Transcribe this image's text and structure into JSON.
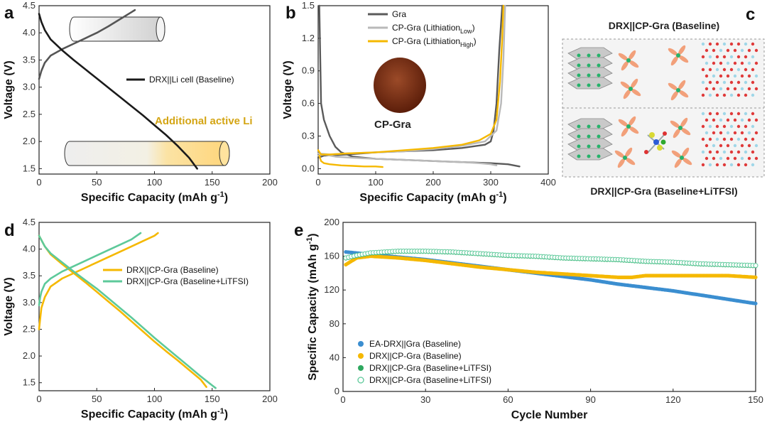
{
  "colors": {
    "black": "#1a1a1a",
    "gray_dark": "#5a5a5a",
    "gray_light": "#b9b9b9",
    "yellow": "#f5b800",
    "green": "#5dc99a",
    "blue": "#3b8ed0",
    "green_dark": "#2ea85f",
    "annotation_gold": "#d4a514",
    "disk": "#7a2e12"
  },
  "chart_data": [
    {
      "panel": "a",
      "type": "line",
      "xlabel": "Specific Capacity (mAh g-1)",
      "ylabel": "Voltage (V)",
      "xlim": [
        0,
        200
      ],
      "ylim": [
        1.4,
        4.5
      ],
      "xticks": [
        "0",
        "50",
        "100",
        "150",
        "200"
      ],
      "yticks": [
        "1.5",
        "2.0",
        "2.5",
        "3.0",
        "3.5",
        "4.0",
        "4.5"
      ],
      "legend": [
        "DRX||Li cell (Baseline)"
      ],
      "annotation": "Additional active Li",
      "series": [
        {
          "name": "charge",
          "x": [
            0,
            2,
            5,
            10,
            20,
            30,
            40,
            50,
            60,
            70,
            80,
            83
          ],
          "y": [
            3.15,
            3.3,
            3.45,
            3.58,
            3.7,
            3.8,
            3.9,
            4.0,
            4.12,
            4.25,
            4.38,
            4.42
          ]
        },
        {
          "name": "discharge",
          "x": [
            0,
            2,
            5,
            10,
            20,
            30,
            40,
            50,
            60,
            70,
            80,
            90,
            100,
            110,
            120,
            130,
            137
          ],
          "y": [
            4.35,
            4.2,
            4.05,
            3.88,
            3.68,
            3.5,
            3.33,
            3.16,
            2.99,
            2.82,
            2.65,
            2.48,
            2.3,
            2.12,
            1.92,
            1.7,
            1.5
          ]
        }
      ]
    },
    {
      "panel": "b",
      "type": "line",
      "xlabel": "Specific Capacity (mAh g-1)",
      "ylabel": "Voltage (V)",
      "xlim": [
        0,
        400
      ],
      "ylim": [
        -0.05,
        1.5
      ],
      "xticks": [
        "0",
        "100",
        "200",
        "300",
        "400"
      ],
      "yticks": [
        "0.0",
        "0.3",
        "0.6",
        "0.9",
        "1.2",
        "1.5"
      ],
      "legend": [
        "Gra",
        "CP-Gra (Lithiation",
        "CP-Gra (Lithiation"
      ],
      "legend_subscripts": [
        "Low",
        "High"
      ],
      "inset_label": "CP-Gra",
      "series": [
        {
          "name": "Gra discharge",
          "x": [
            2,
            5,
            10,
            20,
            30,
            40,
            60,
            100,
            150,
            200,
            250,
            300,
            330,
            350
          ],
          "y": [
            1.5,
            0.6,
            0.45,
            0.3,
            0.2,
            0.15,
            0.11,
            0.09,
            0.08,
            0.07,
            0.06,
            0.05,
            0.04,
            0.02
          ]
        },
        {
          "name": "Gra charge",
          "x": [
            0,
            10,
            50,
            100,
            150,
            200,
            250,
            290,
            300,
            305,
            310,
            315,
            320
          ],
          "y": [
            0.1,
            0.12,
            0.13,
            0.15,
            0.16,
            0.17,
            0.19,
            0.22,
            0.25,
            0.35,
            0.6,
            1.1,
            1.5
          ]
        },
        {
          "name": "CP-Gra Low discharge",
          "x": [
            0,
            10,
            30,
            60,
            100,
            150,
            200,
            250,
            280,
            300,
            310
          ],
          "y": [
            0.12,
            0.13,
            0.11,
            0.1,
            0.09,
            0.08,
            0.07,
            0.06,
            0.05,
            0.04,
            0.03
          ]
        },
        {
          "name": "CP-Gra Low charge",
          "x": [
            0,
            20,
            50,
            100,
            150,
            200,
            250,
            290,
            310,
            318,
            322,
            325
          ],
          "y": [
            0.14,
            0.13,
            0.14,
            0.15,
            0.16,
            0.18,
            0.21,
            0.25,
            0.35,
            0.6,
            1.0,
            1.5
          ]
        },
        {
          "name": "CP-Gra High discharge",
          "x": [
            2,
            5,
            10,
            20,
            40,
            60,
            80,
            100,
            112
          ],
          "y": [
            0.12,
            0.07,
            0.05,
            0.04,
            0.03,
            0.025,
            0.02,
            0.02,
            0.015
          ]
        },
        {
          "name": "CP-Gra High charge",
          "x": [
            0,
            5,
            20,
            50,
            100,
            150,
            200,
            250,
            280,
            300,
            310,
            316,
            320,
            322
          ],
          "y": [
            0.17,
            0.13,
            0.13,
            0.14,
            0.15,
            0.17,
            0.19,
            0.22,
            0.26,
            0.32,
            0.45,
            0.8,
            1.2,
            1.5
          ]
        }
      ]
    },
    {
      "panel": "d",
      "type": "line",
      "xlabel": "Specific Capacity (mAh g-1)",
      "ylabel": "Voltage (V)",
      "xlim": [
        0,
        200
      ],
      "ylim": [
        1.35,
        4.5
      ],
      "xticks": [
        "0",
        "50",
        "100",
        "150",
        "200"
      ],
      "yticks": [
        "1.5",
        "2.0",
        "2.5",
        "3.0",
        "3.5",
        "4.0",
        "4.5"
      ],
      "legend": [
        "DRX||CP-Gra (Baseline)",
        "DRX||CP-Gra (Baseline+LiTFSI)"
      ],
      "series": [
        {
          "name": "Baseline charge",
          "x": [
            0,
            1,
            2,
            5,
            10,
            20,
            30,
            40,
            50,
            60,
            70,
            80,
            90,
            100,
            103
          ],
          "y": [
            2.5,
            2.7,
            2.9,
            3.1,
            3.3,
            3.45,
            3.55,
            3.65,
            3.75,
            3.85,
            3.95,
            4.05,
            4.15,
            4.25,
            4.3
          ]
        },
        {
          "name": "Baseline discharge",
          "x": [
            0,
            5,
            10,
            20,
            30,
            40,
            50,
            60,
            70,
            80,
            90,
            100,
            110,
            120,
            130,
            140,
            145
          ],
          "y": [
            4.25,
            4.05,
            3.9,
            3.72,
            3.55,
            3.38,
            3.2,
            3.02,
            2.84,
            2.65,
            2.46,
            2.27,
            2.09,
            1.92,
            1.74,
            1.56,
            1.42
          ]
        },
        {
          "name": "LiTFSI charge",
          "x": [
            0,
            1,
            2,
            5,
            10,
            20,
            30,
            40,
            50,
            60,
            70,
            80,
            88
          ],
          "y": [
            2.95,
            3.1,
            3.2,
            3.35,
            3.45,
            3.58,
            3.68,
            3.78,
            3.88,
            3.98,
            4.08,
            4.18,
            4.3
          ]
        },
        {
          "name": "LiTFSI discharge",
          "x": [
            0,
            5,
            10,
            20,
            30,
            40,
            50,
            60,
            70,
            80,
            90,
            100,
            110,
            120,
            130,
            140,
            150,
            153
          ],
          "y": [
            4.25,
            4.05,
            3.92,
            3.75,
            3.58,
            3.42,
            3.26,
            3.08,
            2.9,
            2.72,
            2.53,
            2.34,
            2.16,
            1.98,
            1.8,
            1.62,
            1.45,
            1.4
          ]
        }
      ]
    },
    {
      "panel": "e",
      "type": "scatter",
      "xlabel": "Cycle Number",
      "ylabel": "Specific Capacity (mAh g-1)",
      "xlim": [
        0,
        150
      ],
      "ylim": [
        0,
        200
      ],
      "xticks": [
        "0",
        "30",
        "60",
        "90",
        "120",
        "150"
      ],
      "yticks": [
        "0",
        "40",
        "80",
        "120",
        "160",
        "200"
      ],
      "legend": [
        "EA-DRX||Gra (Baseline)",
        "DRX||CP-Gra (Baseline)",
        "DRX||CP-Gra (Baseline+LiTFSI)",
        "DRX||CP-Gra (Baseline+LiTFSI)"
      ],
      "series": [
        {
          "name": "EA-DRX||Gra (Baseline)",
          "x": [
            1,
            10,
            20,
            30,
            40,
            50,
            60,
            70,
            80,
            90,
            100,
            110,
            120,
            130,
            140,
            150
          ],
          "y": [
            165,
            162,
            159,
            156,
            152,
            148,
            144,
            140,
            136,
            132,
            127,
            123,
            119,
            114,
            109,
            104
          ]
        },
        {
          "name": "DRX||CP-Gra (Baseline)",
          "x": [
            1,
            5,
            10,
            20,
            30,
            40,
            50,
            60,
            70,
            80,
            90,
            100,
            105,
            110,
            120,
            130,
            140,
            150
          ],
          "y": [
            150,
            158,
            160,
            158,
            155,
            151,
            147,
            144,
            141,
            139,
            137,
            135,
            135,
            137,
            137,
            137,
            137,
            135
          ]
        },
        {
          "name": "DRX||CP-Gra (Baseline+LiTFSI)",
          "x": [
            1,
            5,
            10,
            15,
            20,
            25,
            30,
            40,
            50,
            60,
            70,
            80,
            90,
            100,
            110,
            120,
            130,
            140,
            150
          ],
          "y": [
            157,
            160,
            163,
            164,
            165,
            165,
            165,
            164,
            162,
            160,
            159,
            157,
            156,
            155,
            153,
            152,
            150,
            149,
            148
          ]
        },
        {
          "name": "DRX||CP-Gra (Baseline+LiTFSI) open",
          "x": [
            1,
            5,
            10,
            15,
            20,
            25,
            30,
            40,
            50,
            60,
            70,
            80,
            90,
            100,
            110,
            120,
            130,
            140,
            150
          ],
          "y": [
            158,
            161,
            164,
            165,
            166,
            166,
            166,
            165,
            163,
            161,
            160,
            158,
            157,
            156,
            154,
            153,
            151,
            150,
            149
          ]
        }
      ]
    }
  ],
  "schematic": {
    "title_top": "DRX||CP-Gra (Baseline)",
    "title_bottom": "DRX||CP-Gra (Baseline+LiTFSI)"
  },
  "panel_labels": [
    "a",
    "b",
    "c",
    "d",
    "e"
  ],
  "unit_superscript": "-1"
}
